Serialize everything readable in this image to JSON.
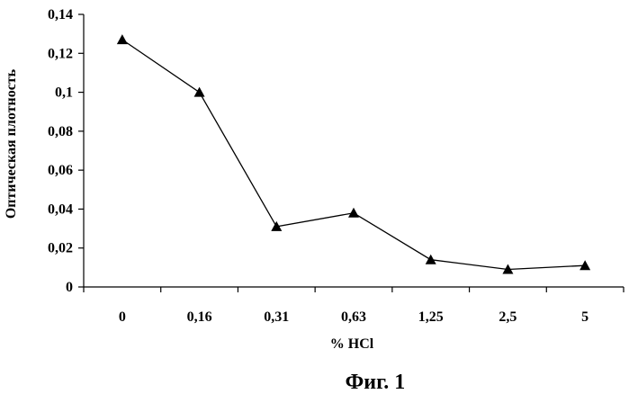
{
  "chart_data": {
    "type": "line",
    "categories": [
      "0",
      "0,16",
      "0,31",
      "0,63",
      "1,25",
      "2,5",
      "5"
    ],
    "series": [
      {
        "values": [
          0.127,
          0.1,
          0.031,
          0.038,
          0.014,
          0.009,
          0.011
        ]
      }
    ],
    "y_ticks": [
      "0",
      "0,02",
      "0,04",
      "0,06",
      "0,08",
      "0,1",
      "0,12",
      "0,14"
    ],
    "ylim": [
      0,
      0.14
    ],
    "ylabel": "Оптическая плотность",
    "xlabel": "% HCl",
    "caption": "Фиг. 1",
    "marker": "triangle",
    "grid": false,
    "line_color": "#000000"
  }
}
